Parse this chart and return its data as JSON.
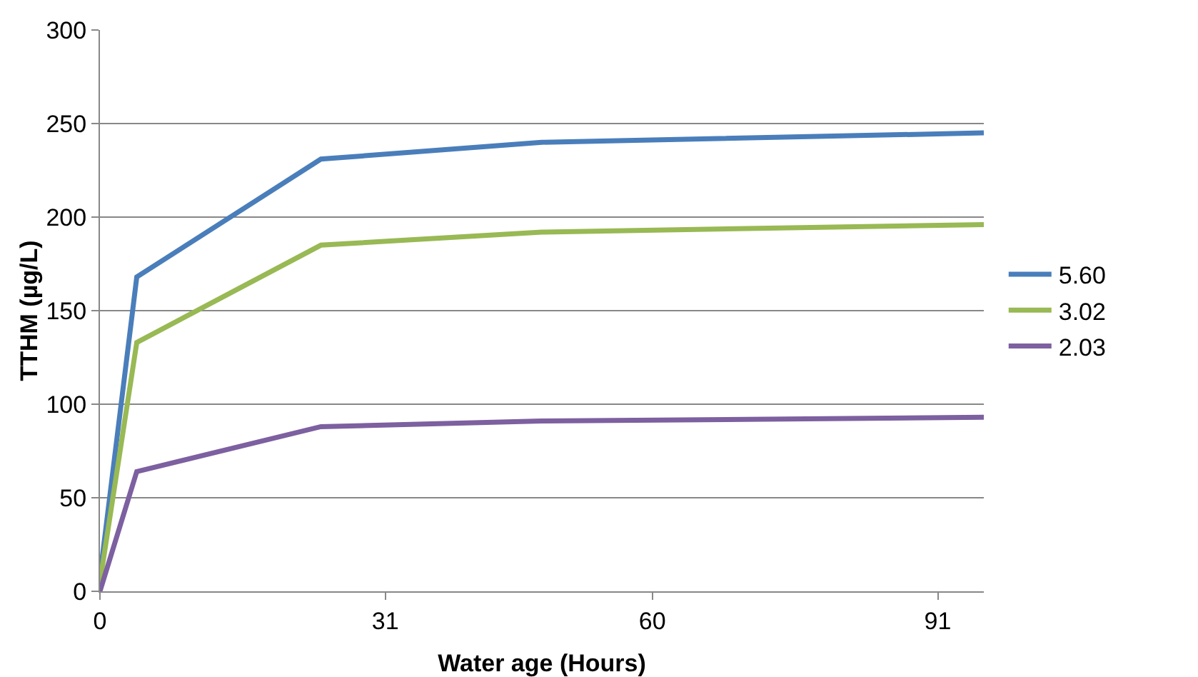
{
  "chart_data": {
    "type": "line",
    "xlabel": "Water age (Hours)",
    "ylabel": "TTHM (µg/L)",
    "x": [
      0,
      4,
      24,
      48,
      96
    ],
    "series": [
      {
        "name": "5.60",
        "color": "#4a7ebb",
        "values": [
          8,
          168,
          231,
          240,
          245
        ]
      },
      {
        "name": "3.02",
        "color": "#98b954",
        "values": [
          5,
          133,
          185,
          192,
          196
        ]
      },
      {
        "name": "2.03",
        "color": "#7d60a0",
        "values": [
          0,
          64,
          88,
          91,
          93
        ]
      }
    ],
    "xlim": [
      0,
      96
    ],
    "xticks": [
      0,
      31,
      60,
      91
    ],
    "ylim": [
      0,
      300
    ],
    "yticks": [
      0,
      50,
      100,
      150,
      200,
      250,
      300
    ],
    "grid": "y",
    "legend": "right",
    "marker": "none",
    "line_style": "solid"
  }
}
